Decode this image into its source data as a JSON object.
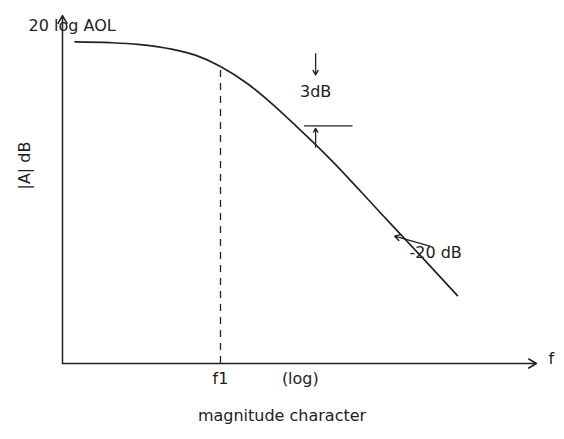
{
  "chart_data": {
    "type": "line",
    "x": [
      1.2,
      2,
      3,
      5,
      7,
      10,
      15,
      20,
      30,
      50,
      100,
      200,
      316
    ],
    "values": [
      99.9,
      99.8,
      99.6,
      99.0,
      98.3,
      97.0,
      94.9,
      93.0,
      90.0,
      86.0,
      80.0,
      74.0,
      70.0
    ],
    "color": "#222222",
    "log": "x",
    "grid": false,
    "tick_labels": false,
    "xlim": [
      1,
      1000
    ],
    "ylim": [
      62,
      103
    ],
    "xticks": [],
    "yticks": [],
    "xlabel": "f",
    "ylabel": "|A| dB",
    "caption": "magnitude character",
    "annotations": [
      {
        "text": "20 log AOL",
        "x": 1.15,
        "y": 101.8
      },
      {
        "text": "3dB",
        "x": 40,
        "y": 94
      },
      {
        "text": "-20 dB",
        "x": 230,
        "y": 75
      }
    ],
    "x_axis_texts": [
      {
        "text": "f1",
        "x": 10,
        "line_style": "dashed"
      },
      {
        "text": "(log)",
        "x": 32
      }
    ]
  }
}
